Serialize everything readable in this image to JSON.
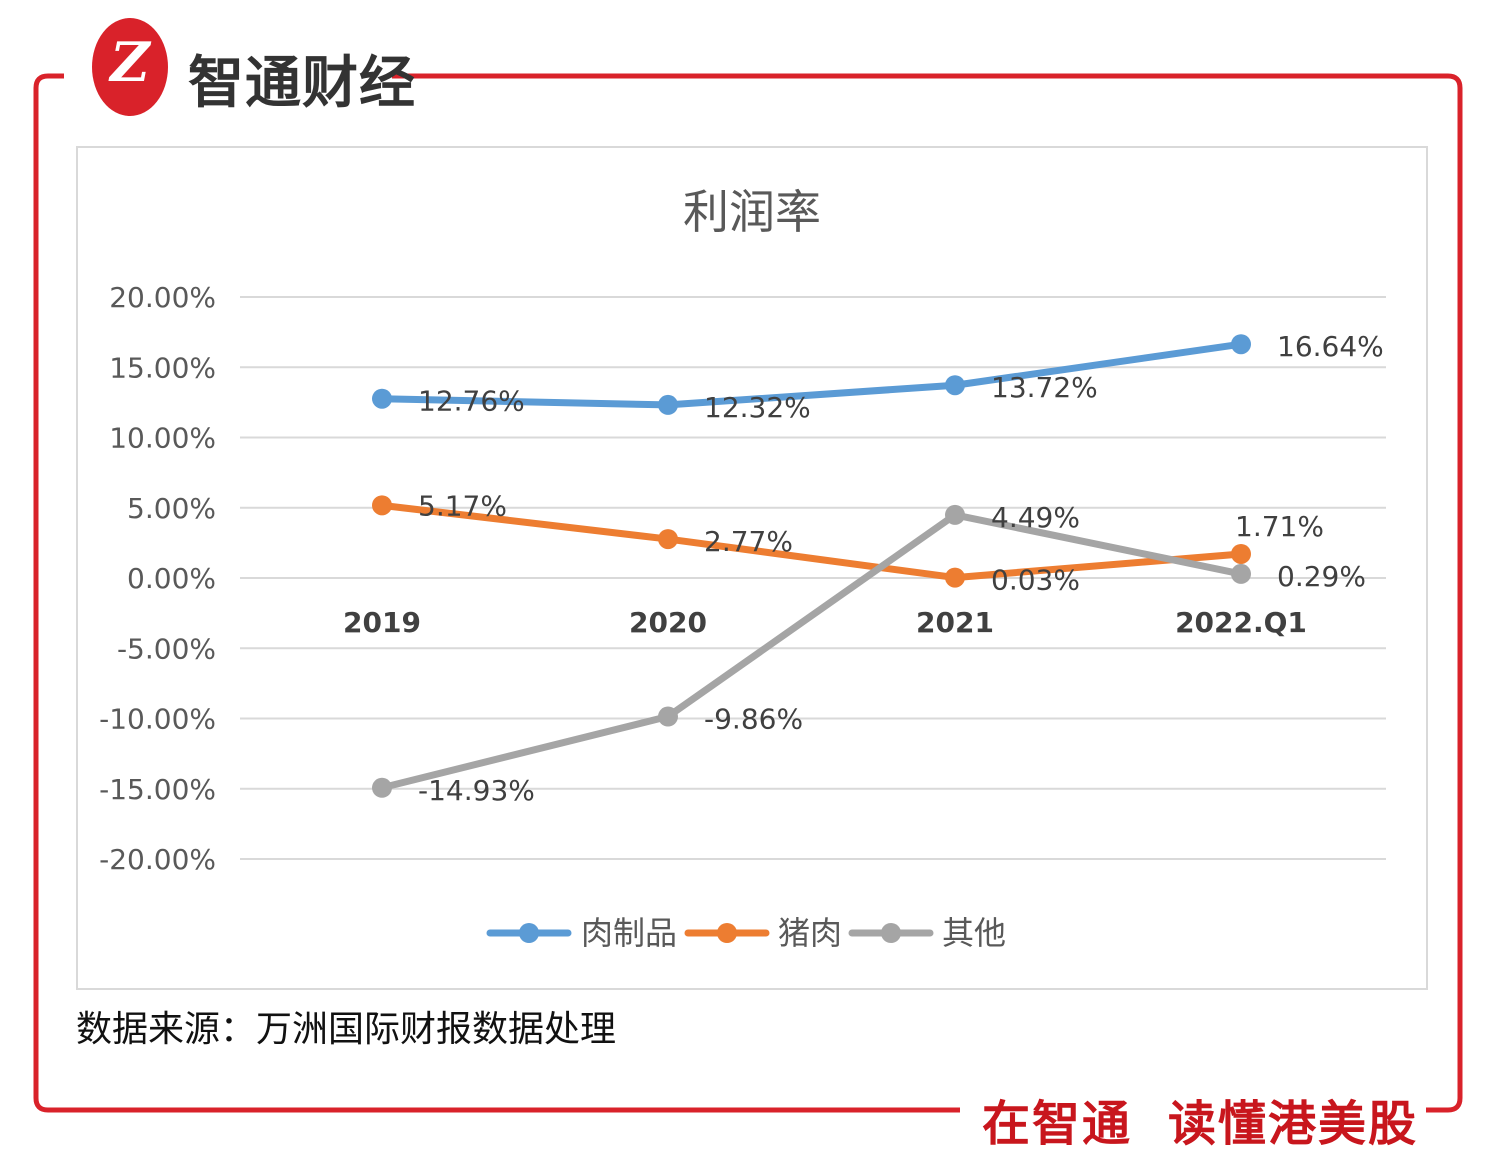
{
  "brand": {
    "name": "智通财经",
    "logo_mark": "Z",
    "color": "#d9222a"
  },
  "footer": {
    "source": "数据来源：万洲国际财报数据处理",
    "slogan_1": "在智通",
    "slogan_2": "读懂港美股"
  },
  "chart_data": {
    "type": "line",
    "title": "利润率",
    "categories": [
      "2019",
      "2020",
      "2021",
      "2022.Q1"
    ],
    "y_ticks": [
      "20.00%",
      "15.00%",
      "10.00%",
      "5.00%",
      "0.00%",
      "-5.00%",
      "-10.00%",
      "-15.00%",
      "-20.00%"
    ],
    "ylim": [
      -20,
      20
    ],
    "grid": true,
    "legend_position": "bottom",
    "series": [
      {
        "name": "肉制品",
        "color": "#5b9bd5",
        "values": [
          12.76,
          12.32,
          13.72,
          16.64
        ],
        "labels": [
          "12.76%",
          "12.32%",
          "13.72%",
          "16.64%"
        ]
      },
      {
        "name": "猪肉",
        "color": "#ed7d31",
        "values": [
          5.17,
          2.77,
          0.03,
          1.71
        ],
        "labels": [
          "5.17%",
          "2.77%",
          "0.03%",
          "1.71%"
        ]
      },
      {
        "name": "其他",
        "color": "#a5a5a5",
        "values": [
          -14.93,
          -9.86,
          4.49,
          0.29
        ],
        "labels": [
          "-14.93%",
          "-9.86%",
          "4.49%",
          "0.29%"
        ]
      }
    ]
  }
}
